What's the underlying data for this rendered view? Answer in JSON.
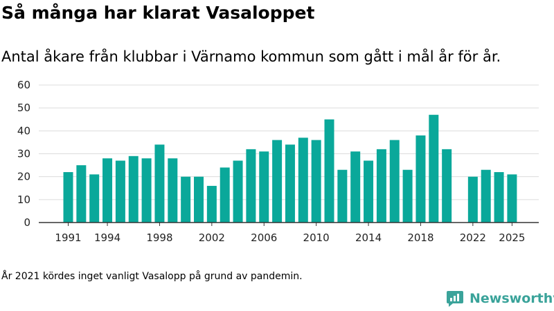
{
  "title": "Så många har klarat Vasaloppet",
  "subtitle": "Antal åkare från klubbar i Värnamo kommun som gått i mål år för år.",
  "note": "År 2021 kördes inget vanligt Vasalopp på grund av pandemin.",
  "brand": {
    "name": "Newsworthy",
    "icon": "newsworthy-logo-icon",
    "color": "#3aa39a"
  },
  "chart_data": {
    "type": "bar",
    "bar_color": "#0aa89a",
    "categories": [
      1991,
      1992,
      1993,
      1994,
      1995,
      1996,
      1997,
      1998,
      1999,
      2000,
      2001,
      2002,
      2003,
      2004,
      2005,
      2006,
      2007,
      2008,
      2009,
      2010,
      2011,
      2012,
      2013,
      2014,
      2015,
      2016,
      2017,
      2018,
      2019,
      2020,
      2021,
      2022,
      2023,
      2024,
      2025
    ],
    "values": [
      22,
      25,
      21,
      28,
      27,
      29,
      28,
      34,
      28,
      20,
      20,
      16,
      24,
      27,
      32,
      31,
      36,
      34,
      37,
      36,
      45,
      23,
      31,
      27,
      32,
      36,
      23,
      38,
      47,
      32,
      null,
      20,
      23,
      22,
      21
    ],
    "ylim": [
      0,
      60
    ],
    "yticks": [
      0,
      10,
      20,
      30,
      40,
      50,
      60
    ],
    "xticks": [
      1991,
      1994,
      1998,
      2002,
      2006,
      2010,
      2014,
      2018,
      2022,
      2025
    ],
    "grid": true,
    "legend": "none"
  }
}
